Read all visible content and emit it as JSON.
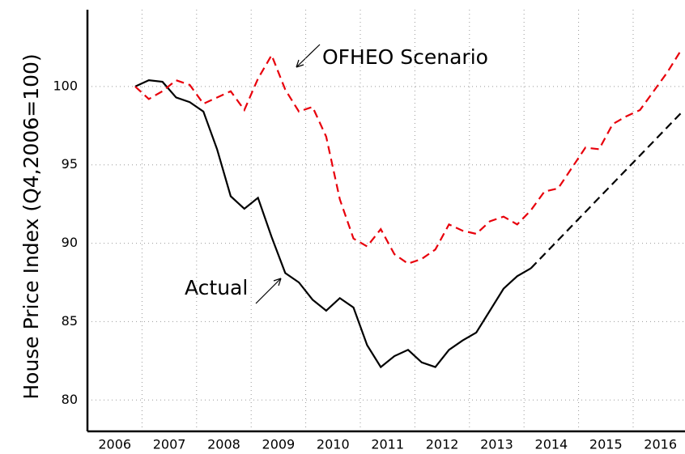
{
  "chart_data": {
    "type": "line",
    "y_label": "House Price Index (Q4,2006=100)",
    "xlim": [
      2006,
      2016.95
    ],
    "ylim": [
      78,
      104.9
    ],
    "xticks": [
      {
        "value": 2006.5,
        "label": "2006"
      },
      {
        "value": 2007.5,
        "label": "2007"
      },
      {
        "value": 2008.5,
        "label": "2008"
      },
      {
        "value": 2009.5,
        "label": "2009"
      },
      {
        "value": 2010.5,
        "label": "2010"
      },
      {
        "value": 2011.5,
        "label": "2011"
      },
      {
        "value": 2012.5,
        "label": "2012"
      },
      {
        "value": 2013.5,
        "label": "2013"
      },
      {
        "value": 2014.5,
        "label": "2014"
      },
      {
        "value": 2015.5,
        "label": "2015"
      },
      {
        "value": 2016.5,
        "label": "2016"
      }
    ],
    "xgrid": [
      2007,
      2008,
      2009,
      2010,
      2011,
      2012,
      2013,
      2014,
      2015,
      2016
    ],
    "yticks": [
      80,
      85,
      90,
      95,
      100
    ],
    "grid": true,
    "series": [
      {
        "name": "Actual",
        "color": "#000000",
        "dash": false,
        "x": [
          2006.875,
          2007.125,
          2007.375,
          2007.625,
          2007.875,
          2008.125,
          2008.375,
          2008.625,
          2008.875,
          2009.125,
          2009.375,
          2009.625,
          2009.875,
          2010.125,
          2010.375,
          2010.625,
          2010.875,
          2011.125,
          2011.375,
          2011.625,
          2011.875,
          2012.125,
          2012.375,
          2012.625,
          2012.875,
          2013.125,
          2013.375,
          2013.625,
          2013.875,
          2014.125
        ],
        "values": [
          100.0,
          100.4,
          100.3,
          99.3,
          99.0,
          98.4,
          96.0,
          93.0,
          92.2,
          92.9,
          90.4,
          88.1,
          87.5,
          86.4,
          85.7,
          86.5,
          85.9,
          83.5,
          82.1,
          82.8,
          83.2,
          82.4,
          82.1,
          83.2,
          83.8,
          84.3,
          85.7,
          87.1,
          87.9,
          88.4
        ]
      },
      {
        "color": "#000000",
        "dash": true,
        "x": [
          2014.125,
          2014.375,
          2014.625,
          2014.875,
          2015.125,
          2015.375,
          2015.625,
          2015.875,
          2016.125,
          2016.375,
          2016.625,
          2016.875
        ],
        "values": [
          88.4,
          89.3,
          90.2,
          91.1,
          92.0,
          92.9,
          93.8,
          94.7,
          95.6,
          96.5,
          97.4,
          98.3
        ]
      },
      {
        "name": "OFHEO Scenario",
        "color": "#e8000b",
        "dash": true,
        "x": [
          2006.875,
          2007.125,
          2007.375,
          2007.625,
          2007.875,
          2008.125,
          2008.375,
          2008.625,
          2008.875,
          2009.125,
          2009.375,
          2009.625,
          2009.875,
          2010.125,
          2010.375,
          2010.625,
          2010.875,
          2011.125,
          2011.375,
          2011.625,
          2011.875,
          2012.125,
          2012.375,
          2012.625,
          2012.875,
          2013.125,
          2013.375,
          2013.625,
          2013.875,
          2014.125,
          2014.375,
          2014.625,
          2014.875,
          2015.125,
          2015.375,
          2015.625,
          2015.875,
          2016.125,
          2016.375,
          2016.625,
          2016.875
        ],
        "values": [
          100.0,
          99.2,
          99.7,
          100.4,
          100.1,
          98.9,
          99.3,
          99.7,
          98.5,
          100.5,
          102.0,
          99.8,
          98.4,
          98.7,
          96.8,
          92.8,
          90.3,
          89.8,
          90.9,
          89.3,
          88.7,
          89.0,
          89.6,
          91.2,
          90.8,
          90.6,
          91.4,
          91.7,
          91.2,
          92.1,
          93.3,
          93.5,
          94.8,
          96.1,
          96.0,
          97.6,
          98.1,
          98.5,
          99.7,
          100.9,
          102.3
        ]
      }
    ]
  }
}
